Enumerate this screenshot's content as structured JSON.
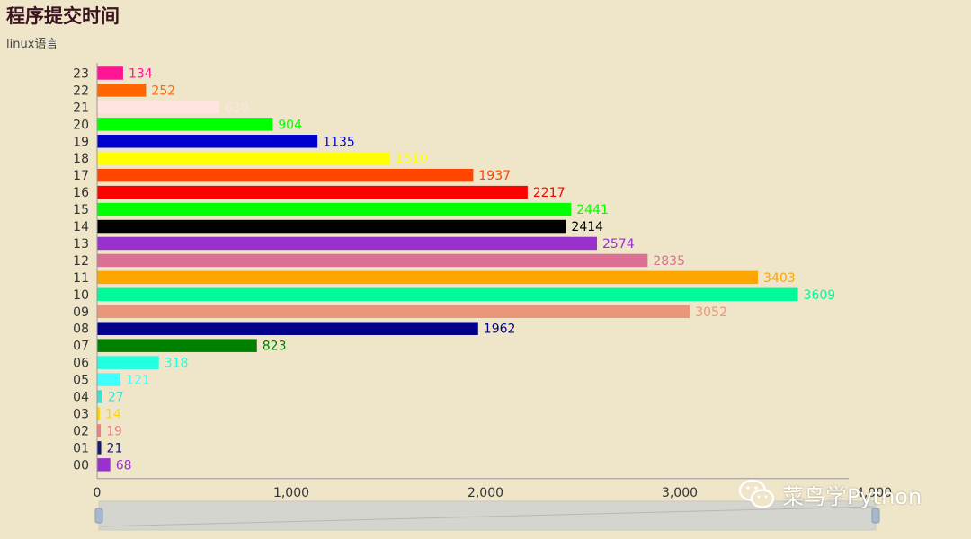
{
  "title": "程序提交时间",
  "subtitle": "linux语言",
  "watermark": "菜鸟学Python",
  "chart_data": {
    "type": "bar",
    "orientation": "horizontal",
    "categories": [
      "00",
      "01",
      "02",
      "03",
      "04",
      "05",
      "06",
      "07",
      "08",
      "09",
      "10",
      "11",
      "12",
      "13",
      "14",
      "15",
      "16",
      "17",
      "18",
      "19",
      "20",
      "21",
      "22",
      "23"
    ],
    "values": [
      68,
      21,
      19,
      14,
      27,
      121,
      318,
      823,
      1962,
      3052,
      3609,
      3403,
      2835,
      2574,
      2414,
      2441,
      2217,
      1937,
      1510,
      1135,
      904,
      630,
      252,
      134
    ],
    "colors": [
      "#9932cc",
      "#191970",
      "#f08080",
      "#ffd700",
      "#40e0d0",
      "#40ffff",
      "#20ffe0",
      "#008000",
      "#00008b",
      "#e9967a",
      "#00fa9a",
      "#ffa500",
      "#db7093",
      "#9932cc",
      "#000000",
      "#00ff00",
      "#ff0000",
      "#ff4500",
      "#ffff00",
      "#0000cd",
      "#00ff00",
      "#ffe4e1",
      "#ff6600",
      "#ff1493"
    ],
    "xticks": [
      "0",
      "1,000",
      "2,000",
      "3,000",
      "4,000"
    ],
    "xlim": [
      0,
      4000
    ],
    "grid": false,
    "datazoom": true
  }
}
